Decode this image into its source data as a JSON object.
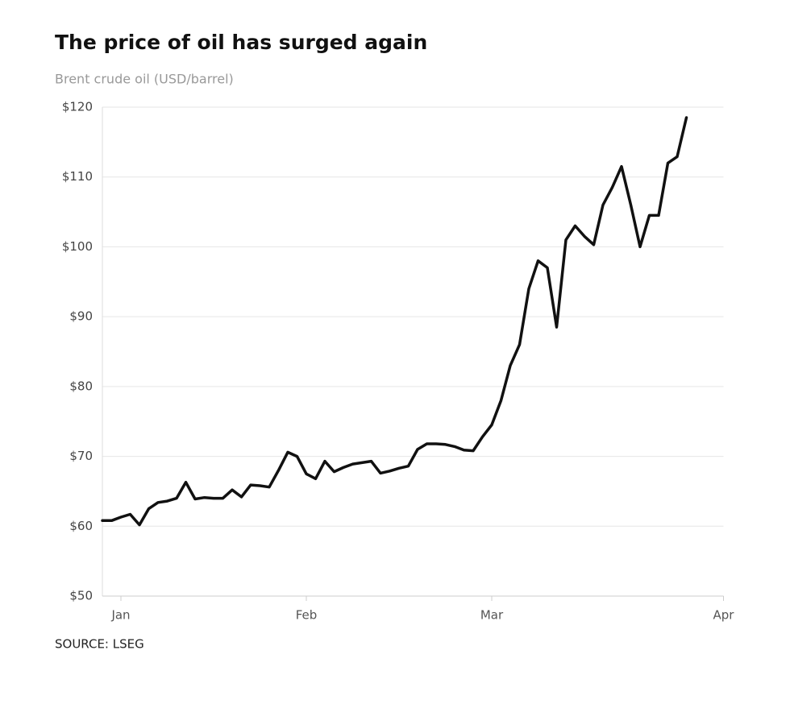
{
  "chart_data": {
    "type": "line",
    "title": "The price of oil has surged again",
    "subtitle": "Brent crude oil (USD/barrel)",
    "source": "SOURCE: LSEG",
    "categories": [
      null,
      null,
      "Jan",
      null,
      null,
      null,
      null,
      null,
      null,
      null,
      null,
      null,
      null,
      null,
      null,
      null,
      null,
      null,
      null,
      null,
      null,
      null,
      "Feb",
      null,
      null,
      null,
      null,
      null,
      null,
      null,
      null,
      null,
      null,
      null,
      null,
      null,
      null,
      null,
      null,
      null,
      null,
      null,
      "Mar",
      null,
      null,
      null,
      null,
      null,
      null,
      null,
      null,
      null,
      null,
      null,
      null,
      null,
      null,
      null,
      null,
      null,
      null,
      null,
      null,
      null,
      null,
      null,
      null,
      "Apr"
    ],
    "series": [
      {
        "name": "Brent crude oil",
        "color": "#111111",
        "values": [
          60.8,
          60.8,
          61.3,
          61.7,
          60.2,
          62.5,
          63.4,
          63.6,
          64,
          66.3,
          63.9,
          64.1,
          64,
          64,
          65.2,
          64.2,
          65.9,
          65.8,
          65.6,
          68,
          70.6,
          70,
          67.5,
          66.8,
          69.3,
          67.8,
          68.4,
          68.9,
          69.1,
          69.3,
          67.6,
          67.9,
          68.3,
          68.6,
          71,
          71.8,
          71.8,
          71.7,
          71.4,
          70.9,
          70.8,
          72.8,
          74.5,
          78,
          83,
          86,
          94,
          98,
          97,
          88.5,
          101,
          103,
          101.5,
          100.3,
          106,
          108.5,
          111.5,
          106,
          100,
          104.5,
          104.5,
          112,
          112.9,
          118.5,
          null,
          null,
          null,
          null
        ]
      }
    ],
    "ylim": [
      50,
      120
    ],
    "yticks": [
      {
        "value": 50,
        "label": "$50"
      },
      {
        "value": 60,
        "label": "$60"
      },
      {
        "value": 70,
        "label": "$70"
      },
      {
        "value": 80,
        "label": "$80"
      },
      {
        "value": 90,
        "label": "$90"
      },
      {
        "value": 100,
        "label": "$100"
      },
      {
        "value": 110,
        "label": "$110"
      },
      {
        "value": 120,
        "label": "$120"
      }
    ],
    "grid": true
  }
}
